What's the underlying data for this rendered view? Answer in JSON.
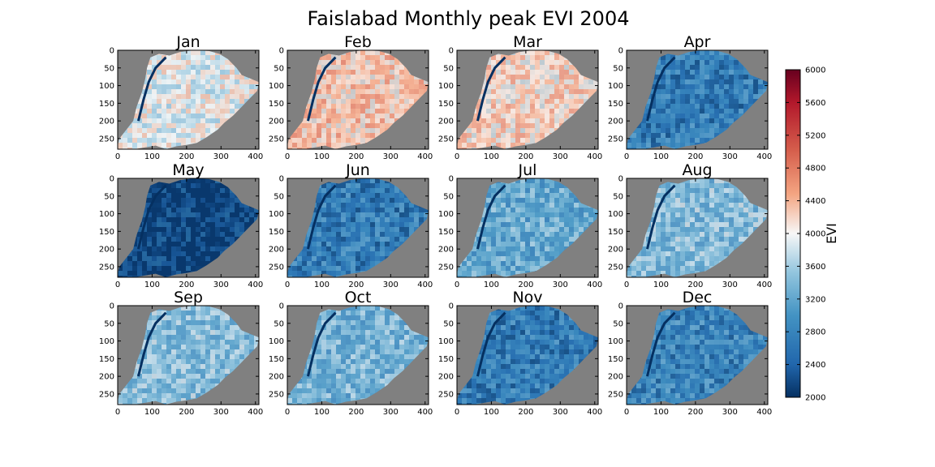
{
  "chart_data": {
    "type": "heatmap",
    "title": "Faislabad Monthly peak EVI 2004",
    "colorbar": {
      "label": "EVI",
      "range": [
        2000,
        6000
      ],
      "ticks": [
        "2000",
        "2400",
        "2800",
        "3200",
        "3600",
        "4000",
        "4400",
        "4800",
        "5200",
        "5600",
        "6000"
      ],
      "colormap": "RdBu_r",
      "placement": "right"
    },
    "background_color": "#808080",
    "x_axis": {
      "range": [
        0,
        410
      ],
      "ticks": [
        "0",
        "100",
        "200",
        "300",
        "400"
      ]
    },
    "y_axis": {
      "range": [
        0,
        280
      ],
      "inverted": true,
      "ticks": [
        "0",
        "50",
        "100",
        "150",
        "200",
        "250"
      ]
    },
    "panels": [
      {
        "month": "Jan",
        "mean_evi": 3900
      },
      {
        "month": "Feb",
        "mean_evi": 4300
      },
      {
        "month": "Mar",
        "mean_evi": 4200
      },
      {
        "month": "Apr",
        "mean_evi": 2700
      },
      {
        "month": "May",
        "mean_evi": 2150
      },
      {
        "month": "Jun",
        "mean_evi": 2700
      },
      {
        "month": "Jul",
        "mean_evi": 3200
      },
      {
        "month": "Aug",
        "mean_evi": 3400
      },
      {
        "month": "Sep",
        "mean_evi": 3400
      },
      {
        "month": "Oct",
        "mean_evi": 3300
      },
      {
        "month": "Nov",
        "mean_evi": 2700
      },
      {
        "month": "Dec",
        "mean_evi": 2800
      }
    ]
  }
}
